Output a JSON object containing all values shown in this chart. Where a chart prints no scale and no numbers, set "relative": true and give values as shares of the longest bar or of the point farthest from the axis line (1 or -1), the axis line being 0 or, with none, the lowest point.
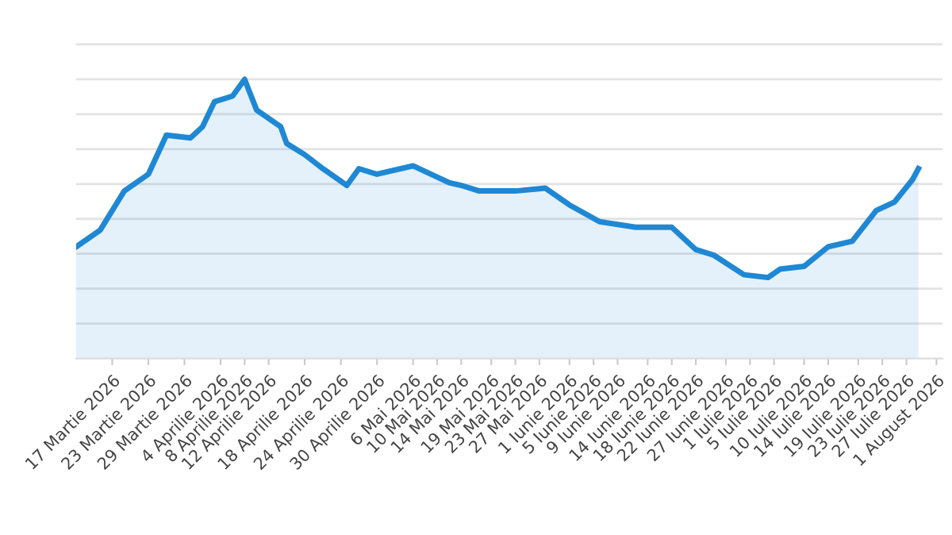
{
  "chart_data": {
    "type": "area",
    "relative": true,
    "color": "#1f88d4",
    "grid": "y",
    "x": [
      "2026-03-11",
      "2026-03-15",
      "2026-03-19",
      "2026-03-23",
      "2026-03-26",
      "2026-03-30",
      "2026-04-01",
      "2026-04-03",
      "2026-04-06",
      "2026-04-08",
      "2026-04-10",
      "2026-04-14",
      "2026-04-15",
      "2026-04-18",
      "2026-04-21",
      "2026-04-25",
      "2026-04-27",
      "2026-04-30",
      "2026-05-06",
      "2026-05-12",
      "2026-05-14",
      "2026-05-17",
      "2026-05-20",
      "2026-05-23",
      "2026-05-28",
      "2026-06-01",
      "2026-06-06",
      "2026-06-12",
      "2026-06-18",
      "2026-06-22",
      "2026-06-25",
      "2026-06-30",
      "2026-07-04",
      "2026-07-06",
      "2026-07-10",
      "2026-07-14",
      "2026-07-18",
      "2026-07-22",
      "2026-07-25",
      "2026-07-28",
      "2026-07-29"
    ],
    "values": [
      0.4,
      0.46,
      0.6,
      0.66,
      0.8,
      0.79,
      0.83,
      0.92,
      0.94,
      1,
      0.89,
      0.83,
      0.77,
      0.73,
      0.68,
      0.62,
      0.68,
      0.66,
      0.69,
      0.63,
      0.62,
      0.6,
      0.6,
      0.6,
      0.61,
      0.55,
      0.49,
      0.47,
      0.47,
      0.39,
      0.37,
      0.3,
      0.29,
      0.32,
      0.33,
      0.4,
      0.42,
      0.53,
      0.56,
      0.64,
      0.68
    ],
    "xlim": [
      "2026-03-11",
      "2026-08-02"
    ],
    "xticks": [
      {
        "value": "2026-03-17",
        "label": "17 Martie 2026"
      },
      {
        "value": "2026-03-23",
        "label": "23 Martie 2026"
      },
      {
        "value": "2026-03-29",
        "label": "29 Martie 2026"
      },
      {
        "value": "2026-04-04",
        "label": "4 Aprilie 2026"
      },
      {
        "value": "2026-04-08",
        "label": "8 Aprilie 2026"
      },
      {
        "value": "2026-04-12",
        "label": "12 Aprilie 2026"
      },
      {
        "value": "2026-04-18",
        "label": "18 Aprilie 2026"
      },
      {
        "value": "2026-04-24",
        "label": "24 Aprilie 2026"
      },
      {
        "value": "2026-04-30",
        "label": "30 Aprilie 2026"
      },
      {
        "value": "2026-05-06",
        "label": "6 Mai 2026"
      },
      {
        "value": "2026-05-10",
        "label": "10 Mai 2026"
      },
      {
        "value": "2026-05-14",
        "label": "14 Mai 2026"
      },
      {
        "value": "2026-05-19",
        "label": "19 Mai 2026"
      },
      {
        "value": "2026-05-23",
        "label": "23 Mai 2026"
      },
      {
        "value": "2026-05-27",
        "label": "27 Mai 2026"
      },
      {
        "value": "2026-06-01",
        "label": "1 Iunie 2026"
      },
      {
        "value": "2026-06-05",
        "label": "5 Iunie 2026"
      },
      {
        "value": "2026-06-09",
        "label": "9 Iunie 2026"
      },
      {
        "value": "2026-06-14",
        "label": "14 Iunie 2026"
      },
      {
        "value": "2026-06-18",
        "label": "18 Iunie 2026"
      },
      {
        "value": "2026-06-22",
        "label": "22 Iunie 2026"
      },
      {
        "value": "2026-06-27",
        "label": "27 Iunie 2026"
      },
      {
        "value": "2026-07-01",
        "label": "1 Iulie 2026"
      },
      {
        "value": "2026-07-05",
        "label": "5 Iulie 2026"
      },
      {
        "value": "2026-07-10",
        "label": "10 Iulie 2026"
      },
      {
        "value": "2026-07-14",
        "label": "14 Iulie 2026"
      },
      {
        "value": "2026-07-19",
        "label": "19 Iulie 2026"
      },
      {
        "value": "2026-07-23",
        "label": "23 Iulie 2026"
      },
      {
        "value": "2026-07-27",
        "label": "27 Iulie 2026"
      },
      {
        "value": "2026-08-01",
        "label": "1 August 2026"
      }
    ]
  }
}
